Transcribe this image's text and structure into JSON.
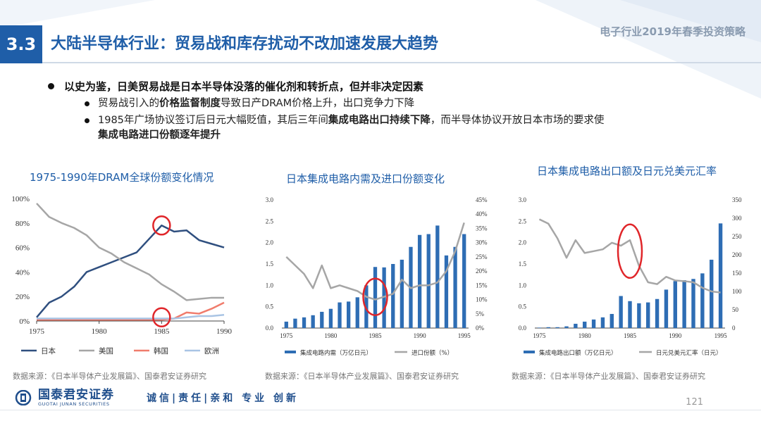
{
  "header": {
    "section_number": "3.3",
    "title": "大陆半导体行业：贸易战和库存扰动不改加速发展大趋势",
    "report_title": "电子行业2019年春季投资策略"
  },
  "bullets": {
    "main": "以史为鉴，日美贸易战是日本半导体没落的催化剂和转折点，但并非决定因素",
    "sub1": {
      "pre": "贸易战引入的",
      "bold": "价格监督制度",
      "post": "导致日产DRAM价格上升，出口竞争力下降"
    },
    "sub2": {
      "pre": "1985年广场协议签订后日元大幅贬值，其后三年间",
      "bold": "集成电路出口持续下降",
      "post": "，而半导体协议开放日本市场的要求使"
    },
    "sub2_cont": "集成电路进口份额逐年提升"
  },
  "chart_data": [
    {
      "type": "line",
      "title": "1975-1990年DRAM全球份额变化情况",
      "x": [
        1975,
        1976,
        1977,
        1978,
        1979,
        1980,
        1981,
        1982,
        1983,
        1984,
        1985,
        1986,
        1987,
        1988,
        1989,
        1990
      ],
      "x_ticks": [
        "1975",
        "1980",
        "1985",
        "1990"
      ],
      "y_ticks": [
        "0%",
        "20%",
        "40%",
        "60%",
        "80%",
        "100%"
      ],
      "ylim": [
        0,
        100
      ],
      "series": [
        {
          "name": "日本",
          "color": "#2f4f7f",
          "values": [
            3,
            15,
            20,
            28,
            40,
            44,
            48,
            52,
            56,
            67,
            78,
            73,
            74,
            66,
            63,
            60
          ]
        },
        {
          "name": "美国",
          "color": "#a6a6a6",
          "values": [
            96,
            85,
            80,
            76,
            70,
            60,
            55,
            48,
            43,
            38,
            30,
            24,
            17,
            18,
            19,
            19
          ]
        },
        {
          "name": "韩国",
          "color": "#f07c6c",
          "values": [
            1,
            1,
            1,
            1,
            1,
            1,
            1,
            1,
            1,
            1,
            1,
            2,
            7,
            6,
            10,
            15
          ]
        },
        {
          "name": "欧洲",
          "color": "#a9c4e4",
          "values": [
            2,
            2,
            2,
            2,
            2,
            2,
            2,
            2,
            2,
            2,
            2,
            2,
            3,
            4,
            4,
            5
          ]
        }
      ],
      "highlights": [
        {
          "x": 1985,
          "y": 78
        },
        {
          "x": 1985,
          "y": 3
        }
      ],
      "source": "数据来源：《日本半导体产业发展篇》、国泰君安证券研究"
    },
    {
      "type": "bar+line",
      "title": "日本集成电路内需及进口份额变化",
      "x": [
        1975,
        1976,
        1977,
        1978,
        1979,
        1980,
        1981,
        1982,
        1983,
        1984,
        1985,
        1986,
        1987,
        1988,
        1989,
        1990,
        1991,
        1992,
        1993,
        1994,
        1995
      ],
      "x_ticks": [
        "1975",
        "1980",
        "1985",
        "1990",
        "1995"
      ],
      "y_left_ticks": [
        "0.0",
        "0.5",
        "1.0",
        "1.5",
        "2.0",
        "2.5",
        "3.0"
      ],
      "y_right_ticks": [
        "0%",
        "5%",
        "10%",
        "15%",
        "20%",
        "25%",
        "30%",
        "35%",
        "40%",
        "45%"
      ],
      "ylim_left": [
        0,
        3.0
      ],
      "ylim_right": [
        0,
        45
      ],
      "bar_series": {
        "name": "集成电路内需（万亿日元）",
        "color": "#2e6db4",
        "values": [
          0.15,
          0.22,
          0.25,
          0.3,
          0.38,
          0.45,
          0.6,
          0.62,
          0.72,
          1.0,
          1.43,
          1.42,
          1.5,
          1.6,
          1.9,
          2.18,
          2.2,
          2.4,
          1.7,
          1.9,
          2.2
        ]
      },
      "line_series": {
        "name": "进口份额（%）",
        "color": "#a6a6a6",
        "values": [
          25,
          22,
          19,
          14,
          22,
          14,
          15,
          14,
          13,
          11,
          10,
          11,
          12,
          17,
          14,
          15,
          15,
          16,
          20,
          27,
          37
        ]
      },
      "highlights": [
        {
          "x": 1985,
          "y_left": 0.73
        }
      ],
      "source": "数据来源：《日本半导体产业发展篇》、国泰君安证券研究"
    },
    {
      "type": "bar+line",
      "title": "日本集成电路出口额及日元兑美元汇率",
      "x": [
        1975,
        1976,
        1977,
        1978,
        1979,
        1980,
        1981,
        1982,
        1983,
        1984,
        1985,
        1986,
        1987,
        1988,
        1989,
        1990,
        1991,
        1992,
        1993,
        1994,
        1995
      ],
      "x_ticks": [
        "1975",
        "1980",
        "1985",
        "1990",
        "1995"
      ],
      "y_left_ticks": [
        "0.0",
        "0.5",
        "1.0",
        "1.5",
        "2.0",
        "2.5",
        "3.0"
      ],
      "y_right_ticks": [
        "0",
        "50",
        "100",
        "150",
        "200",
        "250",
        "300",
        "350"
      ],
      "ylim_left": [
        0,
        3.0
      ],
      "ylim_right": [
        0,
        350
      ],
      "bar_series": {
        "name": "集成电路出口额（万亿日元）",
        "color": "#2e6db4",
        "values": [
          0.01,
          0.02,
          0.02,
          0.04,
          0.1,
          0.15,
          0.2,
          0.25,
          0.33,
          0.75,
          0.63,
          0.58,
          0.6,
          0.68,
          0.9,
          1.1,
          1.12,
          1.15,
          1.28,
          1.6,
          2.45
        ]
      },
      "line_series": {
        "name": "日元兑美元汇率（日元）",
        "color": "#a6a6a6",
        "values": [
          297,
          285,
          245,
          192,
          240,
          205,
          210,
          215,
          233,
          225,
          240,
          170,
          125,
          120,
          140,
          130,
          128,
          125,
          110,
          100,
          97
        ]
      },
      "highlights": [
        {
          "x": 1985,
          "y_left": 1.8
        }
      ],
      "source": "数据来源：《日本半导体产业发展篇》、国泰君安证券研究"
    }
  ],
  "footer": {
    "company_cn": "国泰君安证券",
    "company_en": "GUOTAI JUNAN SECURITIES",
    "motto": "诚信|责任|亲和 专业 创新",
    "page_number": "121"
  }
}
